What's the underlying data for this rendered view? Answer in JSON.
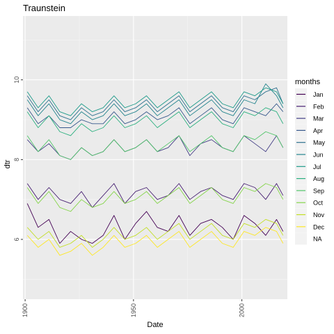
{
  "chart_data": {
    "type": "line",
    "title": "Traunstein",
    "xlabel": "Date",
    "ylabel": "dtr",
    "xlim": [
      1899,
      2021
    ],
    "ylim": [
      4.5,
      11.6
    ],
    "x_ticks": [
      1900,
      1950,
      2000
    ],
    "x_tick_labels": [
      "1900",
      "1950",
      "2000"
    ],
    "y_ticks": [
      6,
      8,
      10
    ],
    "y_tick_labels": [
      "6",
      "8",
      "10"
    ],
    "grid": true,
    "legend": {
      "title": "months",
      "placement": "right",
      "entries": [
        "Jan",
        "Feb",
        "Mar",
        "Apr",
        "May",
        "Jun",
        "Jul",
        "Aug",
        "Sep",
        "Oct",
        "Nov",
        "Dec",
        "NA"
      ]
    },
    "x": [
      1901,
      1906,
      1911,
      1916,
      1921,
      1926,
      1931,
      1936,
      1941,
      1946,
      1951,
      1956,
      1961,
      1966,
      1971,
      1976,
      1981,
      1986,
      1991,
      1996,
      2001,
      2006,
      2011,
      2016,
      2019
    ],
    "series": [
      {
        "name": "Jan",
        "color": "#440154",
        "values": [
          6.9,
          6.3,
          6.5,
          5.9,
          6.2,
          6.0,
          5.9,
          6.1,
          6.6,
          6.0,
          6.4,
          6.7,
          6.3,
          6.2,
          6.6,
          6.1,
          6.4,
          6.5,
          6.3,
          6.0,
          6.6,
          6.4,
          6.1,
          6.5,
          6.2
        ]
      },
      {
        "name": "Feb",
        "color": "#482173",
        "values": [
          7.4,
          7.0,
          7.3,
          7.0,
          6.9,
          7.2,
          6.8,
          7.1,
          7.4,
          6.9,
          7.2,
          7.3,
          7.0,
          7.1,
          7.4,
          7.0,
          7.2,
          7.3,
          7.1,
          7.0,
          7.4,
          7.3,
          7.0,
          7.4,
          7.1
        ]
      },
      {
        "name": "Mar",
        "color": "#433E85",
        "values": [
          8.5,
          8.2,
          8.4,
          8.1,
          8.0,
          8.3,
          8.1,
          8.2,
          8.5,
          8.2,
          8.3,
          8.5,
          8.2,
          8.3,
          8.6,
          8.1,
          8.4,
          8.5,
          8.3,
          8.2,
          8.6,
          8.4,
          8.2,
          8.6,
          8.3
        ]
      },
      {
        "name": "Apr",
        "color": "#38598C",
        "values": [
          9.3,
          8.9,
          9.1,
          8.8,
          8.8,
          9.0,
          8.9,
          8.9,
          9.2,
          8.9,
          9.0,
          9.2,
          9.0,
          9.1,
          9.3,
          8.9,
          9.1,
          9.3,
          9.0,
          8.9,
          9.3,
          9.2,
          9.1,
          9.4,
          9.2
        ]
      },
      {
        "name": "May",
        "color": "#2D708E",
        "values": [
          9.6,
          9.2,
          9.5,
          9.1,
          9.0,
          9.3,
          9.1,
          9.2,
          9.5,
          9.2,
          9.3,
          9.5,
          9.2,
          9.4,
          9.6,
          9.2,
          9.4,
          9.6,
          9.3,
          9.2,
          9.6,
          9.5,
          9.7,
          9.8,
          9.4
        ]
      },
      {
        "name": "Jun",
        "color": "#25858E",
        "values": [
          9.5,
          9.1,
          9.4,
          9.0,
          8.9,
          9.2,
          9.0,
          9.1,
          9.4,
          9.1,
          9.2,
          9.4,
          9.1,
          9.3,
          9.5,
          9.1,
          9.3,
          9.5,
          9.2,
          9.1,
          9.5,
          9.4,
          9.9,
          9.6,
          9.3
        ]
      },
      {
        "name": "Jul",
        "color": "#1E9B8A",
        "values": [
          9.7,
          9.3,
          9.6,
          9.2,
          9.1,
          9.4,
          9.2,
          9.3,
          9.6,
          9.3,
          9.4,
          9.6,
          9.3,
          9.5,
          9.7,
          9.3,
          9.5,
          9.7,
          9.4,
          9.3,
          9.7,
          9.6,
          9.8,
          9.7,
          9.4
        ]
      },
      {
        "name": "Aug",
        "color": "#2BB07F",
        "values": [
          9.2,
          8.8,
          9.1,
          8.7,
          8.6,
          8.9,
          8.7,
          8.8,
          9.1,
          8.8,
          8.9,
          9.1,
          8.8,
          9.0,
          9.2,
          8.8,
          9.0,
          9.2,
          8.9,
          8.8,
          9.2,
          9.1,
          9.3,
          9.2,
          8.9
        ]
      },
      {
        "name": "Sep",
        "color": "#51C56A",
        "values": [
          8.6,
          8.2,
          8.5,
          8.1,
          8.0,
          8.3,
          8.1,
          8.2,
          8.5,
          8.2,
          8.3,
          8.5,
          8.2,
          8.4,
          8.6,
          8.2,
          8.4,
          8.6,
          8.3,
          8.2,
          8.6,
          8.5,
          8.7,
          8.6,
          8.3
        ]
      },
      {
        "name": "Oct",
        "color": "#85D54A",
        "values": [
          7.3,
          6.9,
          7.2,
          6.8,
          6.7,
          7.0,
          6.8,
          6.9,
          7.2,
          6.9,
          7.0,
          7.2,
          6.9,
          7.1,
          7.3,
          6.9,
          7.1,
          7.3,
          7.0,
          6.9,
          7.3,
          7.2,
          7.4,
          7.3,
          7.0
        ]
      },
      {
        "name": "Nov",
        "color": "#C2DF23",
        "values": [
          6.3,
          6.0,
          6.2,
          5.8,
          5.9,
          6.1,
          5.8,
          6.0,
          6.3,
          6.0,
          6.1,
          6.3,
          6.0,
          6.2,
          6.4,
          6.0,
          6.2,
          6.4,
          6.1,
          6.0,
          6.4,
          6.3,
          6.5,
          6.4,
          6.1
        ]
      },
      {
        "name": "Dec",
        "color": "#FDE725",
        "values": [
          6.1,
          5.8,
          6.0,
          5.6,
          5.7,
          5.9,
          5.6,
          5.8,
          6.1,
          5.8,
          5.9,
          6.1,
          5.8,
          6.0,
          6.2,
          5.8,
          6.0,
          6.2,
          5.9,
          5.8,
          6.2,
          6.1,
          6.3,
          6.2,
          5.9
        ]
      }
    ]
  }
}
